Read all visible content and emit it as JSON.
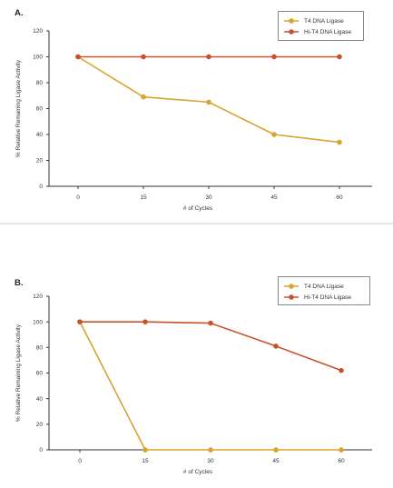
{
  "chart_data": [
    {
      "panel_label": "A.",
      "type": "line",
      "title": "",
      "xlabel": "# of Cycles",
      "ylabel": "% Relative Remaining Ligase Activity",
      "x": [
        0,
        15,
        30,
        45,
        60
      ],
      "x_tick_labels": [
        "0",
        "15",
        "30",
        "45",
        "60"
      ],
      "y_ticks": [
        0,
        20,
        40,
        60,
        80,
        100,
        120
      ],
      "ylim": [
        0,
        120
      ],
      "grid": false,
      "legend_position": "top-right",
      "series": [
        {
          "name": "T4 DNA Ligase",
          "color": "#D9A32E",
          "values": [
            100,
            69,
            65,
            40,
            34
          ]
        },
        {
          "name": "Hi-T4 DNA Ligase",
          "color": "#C9522A",
          "values": [
            100,
            100,
            100,
            100,
            100
          ]
        }
      ]
    },
    {
      "panel_label": "B.",
      "type": "line",
      "title": "",
      "xlabel": "# of Cycles",
      "ylabel": "% Relative Remaining Ligase Activity",
      "x": [
        0,
        15,
        30,
        45,
        60
      ],
      "x_tick_labels": [
        "0",
        "15",
        "30",
        "45",
        "60"
      ],
      "y_ticks": [
        0,
        20,
        40,
        60,
        80,
        100,
        120
      ],
      "ylim": [
        0,
        120
      ],
      "grid": false,
      "legend_position": "top-right",
      "series": [
        {
          "name": "T4 DNA Ligase",
          "color": "#D9A32E",
          "values": [
            100,
            0,
            0,
            0,
            0
          ]
        },
        {
          "name": "Hi-T4 DNA Ligase",
          "color": "#C9522A",
          "values": [
            100,
            100,
            99,
            81,
            62
          ]
        }
      ]
    }
  ]
}
